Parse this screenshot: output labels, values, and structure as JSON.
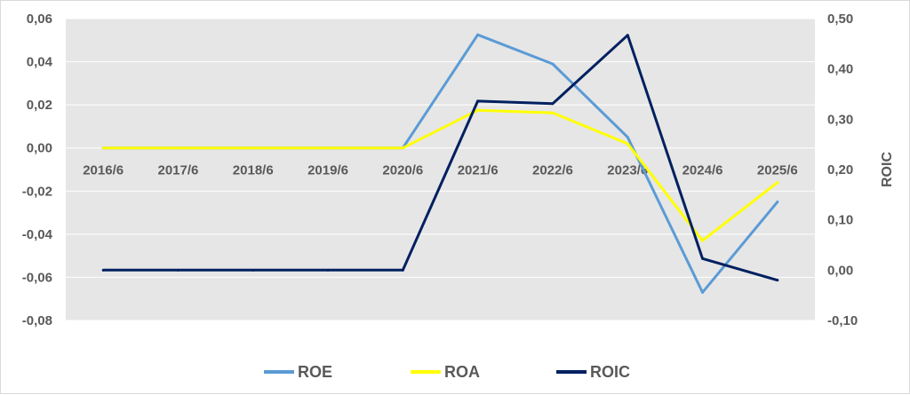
{
  "chart_data": {
    "type": "line",
    "categories": [
      "2016/6",
      "2017/6",
      "2018/6",
      "2019/6",
      "2020/6",
      "2021/6",
      "2022/6",
      "2023/6",
      "2024/6",
      "2025/6"
    ],
    "y_left": {
      "range": [
        -0.08,
        0.06
      ],
      "ticks": [
        "0,06",
        "0,04",
        "0,02",
        "0,00",
        "-0,02",
        "-0,04",
        "-0,06",
        "-0,08"
      ],
      "tick_values": [
        0.06,
        0.04,
        0.02,
        0.0,
        -0.02,
        -0.04,
        -0.06,
        -0.08
      ]
    },
    "y_right": {
      "label": "ROIC",
      "range": [
        -0.1,
        0.5
      ],
      "ticks": [
        "0,50",
        "0,40",
        "0,30",
        "0,20",
        "0,10",
        "0,00",
        "-0,10"
      ],
      "tick_values": [
        0.5,
        0.4,
        0.3,
        0.2,
        0.1,
        0.0,
        -0.1
      ]
    },
    "series": [
      {
        "name": "ROE",
        "axis": "left",
        "color": "#5b9bd5",
        "values": [
          0.0,
          0.0,
          0.0,
          0.0,
          0.0,
          0.0525,
          0.039,
          0.005,
          -0.067,
          -0.025
        ]
      },
      {
        "name": "ROA",
        "axis": "left",
        "color": "#ffff00",
        "values": [
          0.0,
          0.0,
          0.0,
          0.0,
          0.0,
          0.0175,
          0.0163,
          0.002,
          -0.043,
          -0.016
        ]
      },
      {
        "name": "ROIC",
        "axis": "right",
        "color": "#002060",
        "values": [
          0.0,
          0.0,
          0.0,
          0.0,
          0.0,
          0.336,
          0.331,
          0.467,
          0.023,
          -0.02
        ]
      }
    ],
    "grid": true,
    "legend_position": "bottom"
  }
}
